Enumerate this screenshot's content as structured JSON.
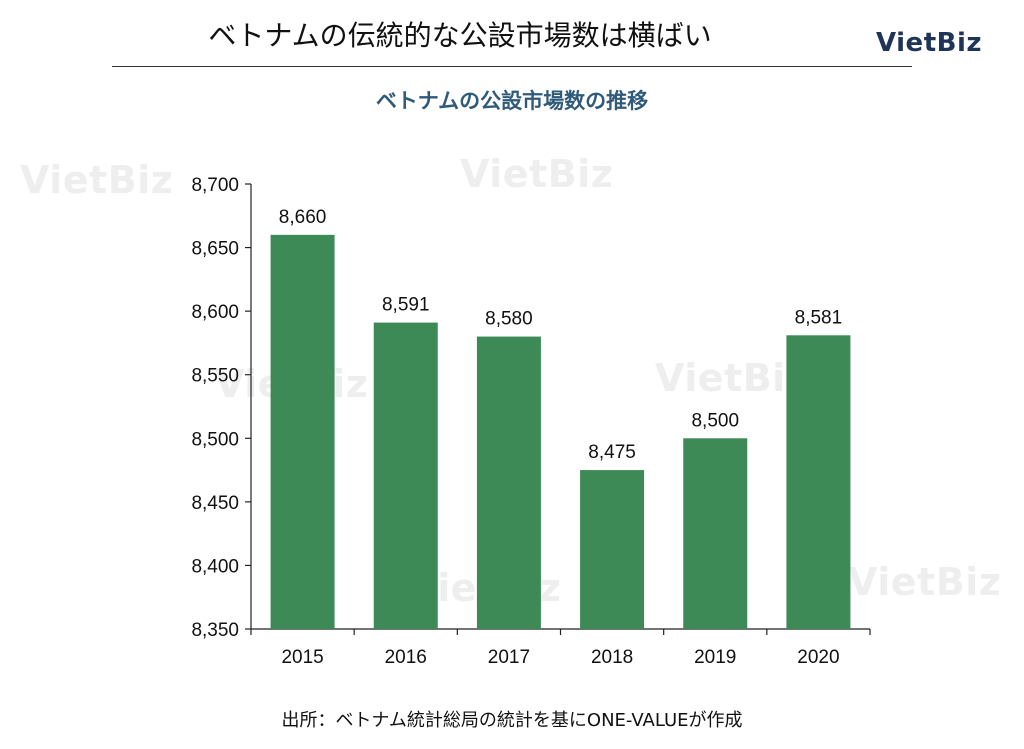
{
  "header": {
    "title": "ベトナムの伝統的な公設市場数は横ばい",
    "logo": "VietBiz"
  },
  "watermark": "VietBiz",
  "source": "出所：ベトナム統計総局の統計を基にONE-VALUEが作成",
  "colors": {
    "bar": "#3d8a56",
    "subtitle": "#2f5a7a",
    "logo": "#1f3557"
  },
  "chart_data": {
    "type": "bar",
    "title": "ベトナムの公設市場数の推移",
    "categories": [
      "2015",
      "2016",
      "2017",
      "2018",
      "2019",
      "2020"
    ],
    "values": [
      8660,
      8591,
      8580,
      8475,
      8500,
      8581
    ],
    "value_labels": [
      "8,660",
      "8,591",
      "8,580",
      "8,475",
      "8,500",
      "8,581"
    ],
    "ylim": [
      8350,
      8700
    ],
    "yticks": [
      8350,
      8400,
      8450,
      8500,
      8550,
      8600,
      8650,
      8700
    ],
    "ytick_labels": [
      "8,350",
      "8,400",
      "8,450",
      "8,500",
      "8,550",
      "8,600",
      "8,650",
      "8,700"
    ],
    "xlabel": "",
    "ylabel": "",
    "grid": false,
    "legend": false
  }
}
